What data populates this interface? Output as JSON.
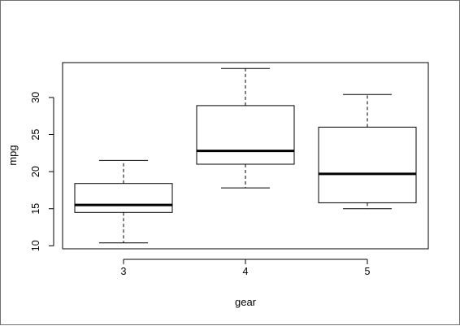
{
  "chart_data": {
    "type": "box",
    "title": "",
    "xlabel": "gear",
    "ylabel": "mpg",
    "categories": [
      "3",
      "4",
      "5"
    ],
    "boxes": [
      {
        "category": "3",
        "whisker_low": 10.4,
        "q1": 14.5,
        "median": 15.5,
        "q3": 18.4,
        "whisker_high": 21.5
      },
      {
        "category": "4",
        "whisker_low": 17.8,
        "q1": 21.0,
        "median": 22.8,
        "q3": 28.9,
        "whisker_high": 33.9
      },
      {
        "category": "5",
        "whisker_low": 15.0,
        "q1": 15.8,
        "median": 19.7,
        "q3": 26.0,
        "whisker_high": 30.4
      }
    ],
    "y_ticks": [
      10,
      15,
      20,
      25,
      30
    ],
    "ylim": [
      9.6,
      34.7
    ],
    "grid": false,
    "legend": "none",
    "colors": {
      "box_fill": "#ffffff",
      "box_stroke": "#000000",
      "median_stroke": "#000000"
    }
  }
}
